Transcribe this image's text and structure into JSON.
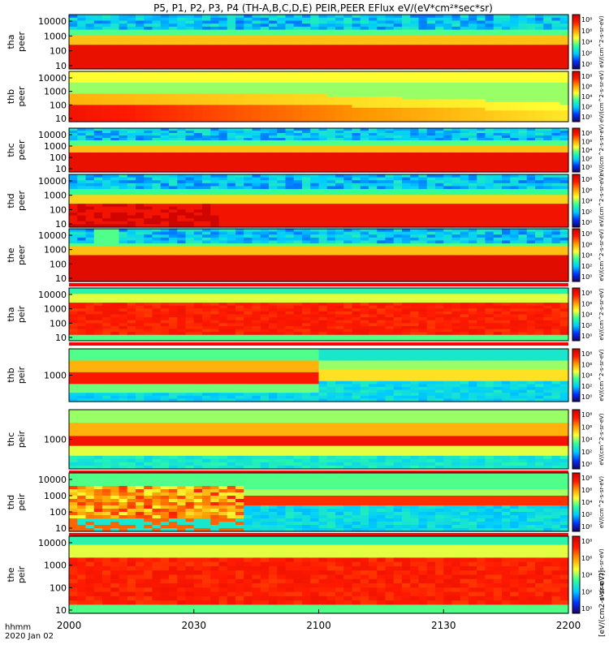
{
  "chart_data": {
    "type": "heatmap",
    "title": "P5, P1, P2, P3, P4 (TH-A,B,C,D,E) PEIR,PEER EFlux eV/(eV*cm²*sec*sr)",
    "x_axis": {
      "caption_line1": "hhmm",
      "caption_line2": "2020 Jan 02",
      "tick_labels": [
        "2000",
        "2030",
        "2100",
        "2130",
        "2200"
      ],
      "tick_minutes": [
        0,
        30,
        60,
        90,
        120
      ],
      "range_minutes": [
        0,
        120
      ]
    },
    "colorbar_unit_label": "eV/(cm^2-s-sr-eV)",
    "colorbar_unit_label_bottom": "[eV/(cm2-s-sr-eV)]",
    "colorbar_tick_labels": [
      "10⁸",
      "10⁶",
      "10⁴",
      "10²",
      "10⁰"
    ],
    "color_scale": [
      "#1a0066",
      "#0033ff",
      "#00ccff",
      "#33ff99",
      "#ffff33",
      "#ff9900",
      "#ff1a00",
      "#cc0000"
    ],
    "panels": [
      {
        "probe": "tha",
        "species": "peer",
        "yticks": [
          "10000",
          "1000",
          "100",
          "10"
        ],
        "profile": "electron",
        "bar": false
      },
      {
        "probe": "thb",
        "species": "peer",
        "yticks": [
          "10000",
          "1000",
          "100",
          "10"
        ],
        "profile": "electron_b",
        "bar": false
      },
      {
        "probe": "thc",
        "species": "peer",
        "yticks": [
          "10000",
          "1000",
          "100",
          "10"
        ],
        "profile": "electron",
        "bar": false
      },
      {
        "probe": "thd",
        "species": "peer",
        "yticks": [
          "10000",
          "1000",
          "100",
          "10"
        ],
        "profile": "electron_d",
        "bar": false
      },
      {
        "probe": "the",
        "species": "peer",
        "yticks": [
          "10000",
          "1000",
          "100",
          "10"
        ],
        "profile": "electron_e",
        "bar": true
      },
      {
        "probe": "tha",
        "species": "peir",
        "yticks": [
          "10000",
          "1000",
          "100",
          "10"
        ],
        "profile": "ion",
        "bar": true
      },
      {
        "probe": "thb",
        "species": "peir",
        "yticks": [
          "1000"
        ],
        "profile": "ion_b",
        "bar": false
      },
      {
        "probe": "thc",
        "species": "peir",
        "yticks": [
          "1000"
        ],
        "profile": "ion_c",
        "bar": true
      },
      {
        "probe": "thd",
        "species": "peir",
        "yticks": [
          "10000",
          "1000",
          "100",
          "10"
        ],
        "profile": "ion_d",
        "bar": true
      },
      {
        "probe": "the",
        "species": "peir",
        "yticks": [
          "10000",
          "1000",
          "100",
          "10"
        ],
        "profile": "ion",
        "bar": false
      }
    ]
  }
}
